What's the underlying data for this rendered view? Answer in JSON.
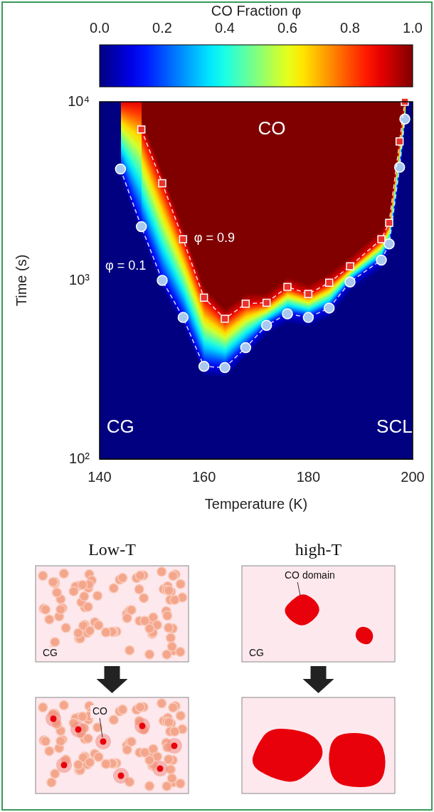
{
  "chart_data": {
    "type": "contour",
    "x_label": "Temperature (K)",
    "y_label": "Time (s)",
    "log": "y",
    "grid": false,
    "xlim": [
      140,
      200
    ],
    "xticks": [
      140,
      160,
      180,
      200
    ],
    "ylim": [
      100,
      10000
    ],
    "yticks": [
      {
        "value": 100,
        "label": "10²"
      },
      {
        "value": 1000,
        "label": "10³"
      },
      {
        "value": 10000,
        "label": "10⁴"
      }
    ],
    "series": [
      {
        "level": 0.9,
        "color": "#e8322a",
        "marker": "square",
        "line_style": "dashed",
        "x": [
          148,
          152,
          156,
          160,
          164,
          168,
          172,
          176,
          180,
          184,
          188,
          194,
          195.5,
          197.5,
          198.5
        ],
        "values": [
          7000,
          3500,
          1700,
          800,
          610,
          740,
          750,
          920,
          840,
          970,
          1200,
          1700,
          2100,
          6000,
          10000
        ]
      },
      {
        "level": 0.1,
        "color": "#a8c8f0",
        "marker": "circle",
        "line_style": "dashed",
        "x": [
          144,
          148,
          152,
          156,
          160,
          164,
          168,
          172,
          176,
          180,
          184,
          188,
          194,
          195.5,
          197.5,
          198.5
        ],
        "values": [
          4200,
          2000,
          1000,
          620,
          330,
          325,
          420,
          560,
          650,
          620,
          700,
          980,
          1300,
          1600,
          4300,
          8000
        ]
      }
    ],
    "colorbar": {
      "label": "CO Fraction φ",
      "range": [
        0,
        1
      ],
      "ticks": [
        {
          "value": 0,
          "label": "0.0"
        },
        0.2,
        0.4,
        0.6,
        0.8,
        {
          "value": 1,
          "label": "1.0"
        }
      ]
    },
    "annotations": [
      {
        "text": "CO",
        "x": 173,
        "y": 7000
      },
      {
        "text": "φ = 0.9",
        "x": 162,
        "y": 1720
      },
      {
        "text": "φ = 0.1",
        "x": 145,
        "y": 1200
      },
      {
        "text": "CG",
        "x": 144,
        "y": 150
      },
      {
        "text": "SCL",
        "x": 196.5,
        "y": 150
      }
    ]
  },
  "schematic": {
    "columns": [
      {
        "heading": "Low-T",
        "top_labels": [
          "CG"
        ],
        "bottom_labels": [
          "CO"
        ]
      },
      {
        "heading": "high-T",
        "top_labels": [
          "CO domain",
          "CG"
        ]
      }
    ]
  }
}
